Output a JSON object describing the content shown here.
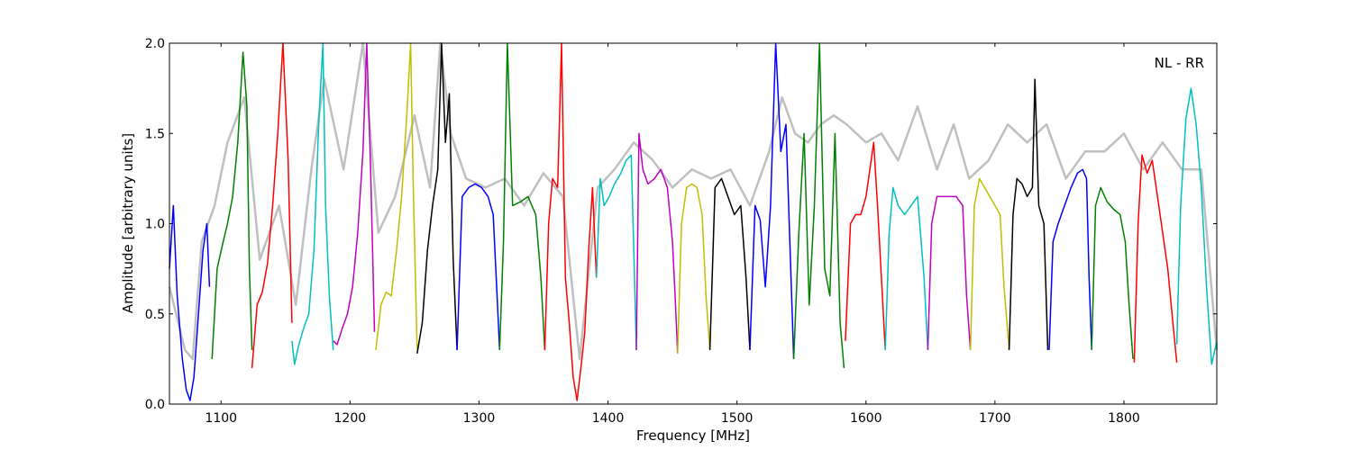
{
  "chart_data": {
    "type": "line",
    "annotation": "NL - RR",
    "xlabel": "Frequency [MHz]",
    "ylabel": "Amplitude [arbitrary units]",
    "xlim": [
      1060,
      1872
    ],
    "ylim": [
      0.0,
      2.0
    ],
    "xticks": [
      1100,
      1200,
      1300,
      1400,
      1500,
      1600,
      1700,
      1800
    ],
    "yticks": [
      0.0,
      0.5,
      1.0,
      1.5,
      2.0
    ],
    "ytick_labels": [
      "0.0",
      "0.5",
      "1.0",
      "1.5",
      "2.0"
    ],
    "grid": false,
    "legend": "none",
    "background_trace": {
      "color": "#bfbfbf",
      "description": "grey reference spectrum",
      "x": [
        1060,
        1072,
        1078,
        1085,
        1095,
        1105,
        1118,
        1130,
        1145,
        1158,
        1170,
        1180,
        1195,
        1210,
        1222,
        1235,
        1250,
        1262,
        1270,
        1278,
        1290,
        1305,
        1320,
        1335,
        1350,
        1365,
        1378,
        1392,
        1405,
        1420,
        1435,
        1450,
        1465,
        1480,
        1495,
        1510,
        1525,
        1535,
        1545,
        1555,
        1565,
        1575,
        1585,
        1600,
        1612,
        1625,
        1640,
        1655,
        1668,
        1680,
        1695,
        1710,
        1725,
        1740,
        1755,
        1770,
        1785,
        1800,
        1815,
        1830,
        1845,
        1860,
        1872
      ],
      "y": [
        0.65,
        0.3,
        0.25,
        0.9,
        1.1,
        1.45,
        1.7,
        0.8,
        1.1,
        0.55,
        1.3,
        1.8,
        1.3,
        2.0,
        0.95,
        1.15,
        1.6,
        1.2,
        2.0,
        1.5,
        1.25,
        1.2,
        1.25,
        1.1,
        1.28,
        1.15,
        0.25,
        1.2,
        1.3,
        1.45,
        1.35,
        1.2,
        1.3,
        1.25,
        1.3,
        1.1,
        1.4,
        1.7,
        1.5,
        1.45,
        1.55,
        1.6,
        1.55,
        1.45,
        1.5,
        1.35,
        1.65,
        1.3,
        1.55,
        1.25,
        1.35,
        1.55,
        1.45,
        1.55,
        1.25,
        1.4,
        1.4,
        1.5,
        1.3,
        1.45,
        1.3,
        1.3,
        0.3
      ]
    },
    "series": [
      {
        "color": "#0000ff",
        "x": [
          1060,
          1063,
          1066,
          1070,
          1073,
          1076,
          1079,
          1083,
          1086,
          1089,
          1091
        ],
        "y": [
          0.75,
          1.1,
          0.6,
          0.25,
          0.08,
          0.02,
          0.15,
          0.55,
          0.85,
          1.0,
          0.65
        ]
      },
      {
        "color": "#008000",
        "x": [
          1093,
          1097,
          1101,
          1105,
          1109,
          1113,
          1117,
          1120,
          1122,
          1124
        ],
        "y": [
          0.25,
          0.75,
          0.88,
          1.0,
          1.15,
          1.45,
          1.95,
          1.65,
          0.75,
          0.3
        ]
      },
      {
        "color": "#ff0000",
        "x": [
          1124,
          1128,
          1132,
          1136,
          1140,
          1144,
          1148,
          1152,
          1155
        ],
        "y": [
          0.2,
          0.55,
          0.62,
          0.78,
          1.1,
          1.5,
          2.0,
          1.35,
          0.45
        ]
      },
      {
        "color": "#00bfbf",
        "x": [
          1155,
          1157,
          1160,
          1164,
          1168,
          1172,
          1176,
          1179,
          1181,
          1184,
          1187
        ],
        "y": [
          0.35,
          0.22,
          0.32,
          0.42,
          0.5,
          0.85,
          1.6,
          2.0,
          1.1,
          0.6,
          0.3
        ]
      },
      {
        "color": "#bf00bf",
        "x": [
          1187,
          1190,
          1194,
          1198,
          1202,
          1206,
          1210,
          1213,
          1216,
          1219
        ],
        "y": [
          0.35,
          0.33,
          0.42,
          0.5,
          0.65,
          0.95,
          1.4,
          2.0,
          1.3,
          0.4
        ]
      },
      {
        "color": "#bfbf00",
        "x": [
          1220,
          1224,
          1228,
          1232,
          1236,
          1240,
          1244,
          1247,
          1249,
          1252
        ],
        "y": [
          0.3,
          0.55,
          0.62,
          0.6,
          0.85,
          1.15,
          1.6,
          2.0,
          1.2,
          0.3
        ]
      },
      {
        "color": "#000000",
        "x": [
          1252,
          1256,
          1260,
          1264,
          1268,
          1271,
          1274,
          1277,
          1280,
          1283
        ],
        "y": [
          0.28,
          0.45,
          0.85,
          1.1,
          1.3,
          2.0,
          1.45,
          1.72,
          0.8,
          0.3
        ]
      },
      {
        "color": "#0000ff",
        "x": [
          1283,
          1287,
          1292,
          1297,
          1302,
          1307,
          1311,
          1314,
          1316
        ],
        "y": [
          0.3,
          1.15,
          1.2,
          1.22,
          1.2,
          1.15,
          1.05,
          0.6,
          0.3
        ]
      },
      {
        "color": "#008000",
        "x": [
          1316,
          1319,
          1322,
          1326,
          1332,
          1338,
          1344,
          1348,
          1351
        ],
        "y": [
          0.3,
          0.9,
          2.0,
          1.1,
          1.12,
          1.15,
          1.05,
          0.7,
          0.3
        ]
      },
      {
        "color": "#ff0000",
        "x": [
          1351,
          1354,
          1357,
          1361,
          1364,
          1367,
          1370,
          1373,
          1376,
          1379,
          1382,
          1385,
          1388,
          1391
        ],
        "y": [
          0.3,
          1.0,
          1.25,
          1.2,
          2.0,
          0.7,
          0.45,
          0.15,
          0.02,
          0.2,
          0.4,
          0.85,
          1.2,
          0.7
        ]
      },
      {
        "color": "#00bfbf",
        "x": [
          1391,
          1394,
          1397,
          1401,
          1405,
          1410,
          1414,
          1418,
          1420,
          1422
        ],
        "y": [
          0.7,
          1.25,
          1.1,
          1.15,
          1.22,
          1.28,
          1.35,
          1.38,
          0.85,
          0.3
        ]
      },
      {
        "color": "#bf00bf",
        "x": [
          1422,
          1424,
          1427,
          1431,
          1436,
          1441,
          1446,
          1450,
          1452,
          1454
        ],
        "y": [
          0.3,
          1.5,
          1.3,
          1.22,
          1.25,
          1.3,
          1.2,
          0.9,
          0.6,
          0.28
        ]
      },
      {
        "color": "#bfbf00",
        "x": [
          1454,
          1457,
          1461,
          1465,
          1469,
          1473,
          1476,
          1479
        ],
        "y": [
          0.28,
          1.0,
          1.2,
          1.22,
          1.2,
          1.05,
          0.6,
          0.3
        ]
      },
      {
        "color": "#000000",
        "x": [
          1479,
          1483,
          1488,
          1493,
          1498,
          1503,
          1507,
          1510
        ],
        "y": [
          0.3,
          1.2,
          1.25,
          1.15,
          1.05,
          1.1,
          0.7,
          0.3
        ]
      },
      {
        "color": "#0000ff",
        "x": [
          1510,
          1514,
          1518,
          1522,
          1526,
          1530,
          1534,
          1538,
          1541,
          1544
        ],
        "y": [
          0.3,
          1.1,
          1.02,
          0.65,
          1.1,
          2.0,
          1.4,
          1.55,
          0.9,
          0.25
        ]
      },
      {
        "color": "#008000",
        "x": [
          1544,
          1548,
          1552,
          1556,
          1560,
          1564,
          1568,
          1572,
          1576,
          1580,
          1583
        ],
        "y": [
          0.25,
          0.95,
          1.5,
          0.55,
          1.1,
          2.0,
          0.75,
          0.6,
          1.5,
          0.45,
          0.2
        ]
      },
      {
        "color": "#ff0000",
        "x": [
          1584,
          1588,
          1592,
          1596,
          1600,
          1603,
          1606,
          1609,
          1612,
          1615
        ],
        "y": [
          0.35,
          1.0,
          1.05,
          1.05,
          1.15,
          1.3,
          1.45,
          1.1,
          0.7,
          0.3
        ]
      },
      {
        "color": "#00bfbf",
        "x": [
          1615,
          1618,
          1621,
          1625,
          1630,
          1635,
          1640,
          1645,
          1648
        ],
        "y": [
          0.3,
          0.95,
          1.2,
          1.1,
          1.05,
          1.1,
          1.15,
          0.7,
          0.3
        ]
      },
      {
        "color": "#bf00bf",
        "x": [
          1648,
          1651,
          1655,
          1660,
          1665,
          1670,
          1675,
          1678,
          1681
        ],
        "y": [
          0.3,
          1.0,
          1.15,
          1.15,
          1.15,
          1.15,
          1.1,
          0.6,
          0.3
        ]
      },
      {
        "color": "#bfbf00",
        "x": [
          1681,
          1684,
          1688,
          1692,
          1696,
          1700,
          1704,
          1707,
          1711
        ],
        "y": [
          0.3,
          1.1,
          1.25,
          1.2,
          1.15,
          1.1,
          1.05,
          0.65,
          0.3
        ]
      },
      {
        "color": "#000000",
        "x": [
          1711,
          1714,
          1717,
          1721,
          1725,
          1729,
          1731,
          1734,
          1738,
          1741
        ],
        "y": [
          0.3,
          1.05,
          1.25,
          1.22,
          1.15,
          1.2,
          1.8,
          1.1,
          1.0,
          0.3
        ]
      },
      {
        "color": "#0000ff",
        "x": [
          1742,
          1745,
          1749,
          1754,
          1759,
          1764,
          1768,
          1771,
          1773,
          1775
        ],
        "y": [
          0.3,
          0.9,
          1.0,
          1.1,
          1.2,
          1.28,
          1.3,
          1.25,
          0.7,
          0.3
        ]
      },
      {
        "color": "#008000",
        "x": [
          1775,
          1778,
          1782,
          1787,
          1792,
          1797,
          1801,
          1804,
          1807
        ],
        "y": [
          0.3,
          1.1,
          1.2,
          1.12,
          1.08,
          1.05,
          0.9,
          0.55,
          0.25
        ]
      },
      {
        "color": "#ff0000",
        "x": [
          1808,
          1811,
          1814,
          1818,
          1822,
          1826,
          1830,
          1834,
          1838,
          1841
        ],
        "y": [
          0.23,
          1.0,
          1.38,
          1.28,
          1.35,
          1.15,
          0.95,
          0.75,
          0.45,
          0.23
        ]
      },
      {
        "color": "#00bfbf",
        "x": [
          1841,
          1844,
          1848,
          1852,
          1856,
          1860,
          1864,
          1868,
          1872
        ],
        "y": [
          0.33,
          1.1,
          1.58,
          1.75,
          1.55,
          1.2,
          0.65,
          0.22,
          0.35
        ]
      }
    ]
  }
}
